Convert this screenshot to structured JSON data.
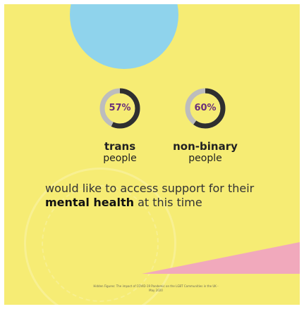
{
  "colors": {
    "background": "#f6ec74",
    "blue_blob": "#8fd3ec",
    "ring_filled": "#2f2f2f",
    "ring_track": "#bdbdbd",
    "percent_text": "#6b2f7a",
    "pink_wedge": "#f1a9bc"
  },
  "stats": [
    {
      "percent": "57%",
      "value": 57,
      "title": "trans",
      "subtitle": "people"
    },
    {
      "percent": "60%",
      "value": 60,
      "title": "non-binary",
      "subtitle": "people"
    }
  ],
  "headline": {
    "pre": "would like to access support for their ",
    "emphasis": "mental health",
    "post": " at this time"
  },
  "source_note": "Hidden Figures: The impact of COVID-19 Pandemic on the LGBT Communities in the UK - May 2020",
  "icons": {
    "seal": "watermark-seal-icon"
  }
}
